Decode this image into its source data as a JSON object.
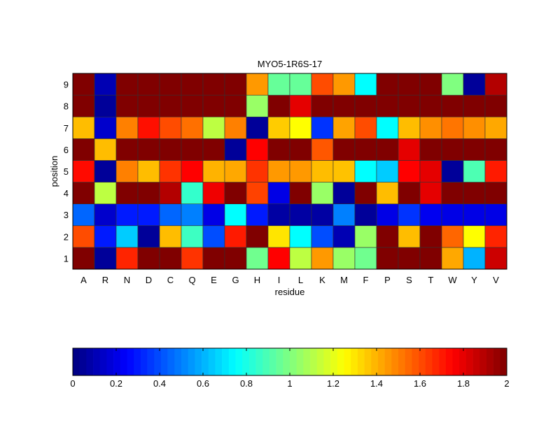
{
  "chart_data": {
    "type": "heatmap",
    "title": "MYO5-1R6S-17",
    "xlabel": "residue",
    "ylabel": "position",
    "x_categories": [
      "A",
      "R",
      "N",
      "D",
      "C",
      "Q",
      "E",
      "G",
      "H",
      "I",
      "L",
      "K",
      "M",
      "F",
      "P",
      "S",
      "T",
      "W",
      "Y",
      "V"
    ],
    "y_categories": [
      "1",
      "2",
      "3",
      "4",
      "5",
      "6",
      "7",
      "8",
      "9"
    ],
    "colormap": "jet",
    "clim": [
      0,
      2
    ],
    "colorbar": {
      "placement": "bottom",
      "ticks": [
        "0",
        "0.2",
        "0.4",
        "0.6",
        "0.8",
        "1",
        "1.2",
        "1.4",
        "1.6",
        "1.8",
        "2"
      ]
    },
    "values": [
      [
        2.0,
        0.05,
        1.68,
        2.0,
        2.0,
        1.65,
        2.0,
        2.0,
        0.97,
        1.75,
        1.12,
        1.45,
        1.05,
        0.97,
        2.0,
        2.0,
        2.0,
        1.42,
        0.6,
        1.85
      ],
      [
        1.6,
        0.3,
        0.65,
        0.05,
        1.38,
        0.87,
        0.4,
        1.7,
        2.0,
        1.3,
        0.75,
        0.4,
        0.1,
        1.05,
        2.0,
        1.38,
        2.0,
        1.55,
        1.25,
        1.68
      ],
      [
        0.45,
        0.15,
        0.3,
        0.3,
        0.45,
        0.5,
        0.2,
        0.75,
        0.3,
        0.07,
        0.07,
        0.07,
        0.5,
        0.05,
        0.2,
        0.35,
        0.22,
        0.2,
        0.2,
        0.2
      ],
      [
        2.0,
        1.12,
        2.0,
        2.0,
        1.9,
        0.85,
        1.78,
        2.0,
        1.62,
        0.2,
        2.0,
        1.05,
        0.05,
        2.0,
        1.38,
        2.0,
        1.8,
        2.0,
        2.0,
        2.0
      ],
      [
        1.73,
        0.05,
        1.5,
        1.38,
        1.65,
        1.75,
        1.4,
        1.42,
        1.65,
        1.45,
        1.45,
        1.38,
        1.37,
        0.75,
        0.65,
        1.75,
        1.8,
        0.05,
        0.9,
        1.7
      ],
      [
        2.0,
        1.38,
        2.0,
        2.0,
        2.0,
        2.0,
        2.0,
        0.05,
        1.75,
        2.0,
        2.0,
        1.58,
        2.0,
        2.0,
        2.0,
        1.8,
        2.0,
        2.0,
        2.0,
        2.0
      ],
      [
        1.38,
        0.15,
        1.5,
        1.72,
        1.6,
        1.53,
        1.12,
        1.5,
        0.05,
        1.35,
        1.25,
        0.35,
        1.43,
        1.6,
        0.75,
        1.38,
        1.47,
        1.52,
        1.47,
        1.42
      ],
      [
        2.0,
        0.05,
        2.0,
        2.0,
        2.0,
        2.0,
        2.0,
        2.0,
        1.05,
        2.0,
        1.8,
        2.0,
        2.0,
        2.0,
        2.0,
        2.0,
        2.0,
        2.0,
        2.0,
        2.0
      ],
      [
        2.0,
        0.1,
        2.0,
        2.0,
        2.0,
        2.0,
        2.0,
        2.0,
        1.45,
        0.95,
        0.95,
        1.6,
        1.45,
        0.75,
        2.0,
        2.0,
        2.0,
        1.0,
        0.05,
        1.9
      ]
    ]
  }
}
